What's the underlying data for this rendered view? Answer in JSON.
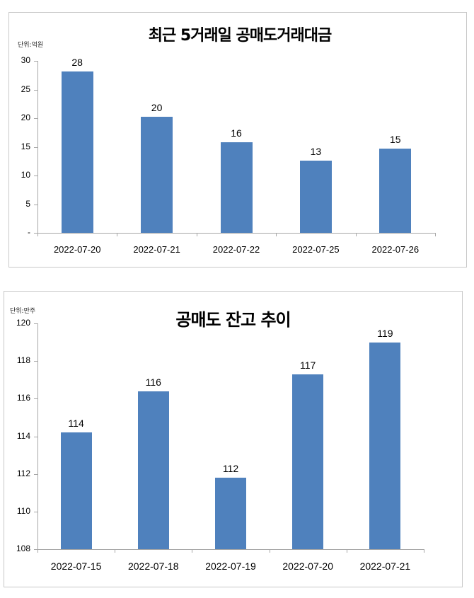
{
  "chart_data": [
    {
      "type": "bar",
      "title": "최근 5거래일 공매도거래대금",
      "unit_label": "단위:억원",
      "xlabel": "",
      "ylabel": "",
      "categories": [
        "2022-07-20",
        "2022-07-21",
        "2022-07-22",
        "2022-07-25",
        "2022-07-26"
      ],
      "values": [
        28,
        20,
        16,
        13,
        15
      ],
      "plotted_values": [
        28.1,
        20.2,
        15.8,
        12.6,
        14.7
      ],
      "data_labels": [
        "28",
        "20",
        "16",
        "13",
        "15"
      ],
      "ylim": [
        0,
        30
      ],
      "yticks": [
        0,
        5,
        10,
        15,
        20,
        25,
        30
      ],
      "ytick_labels": [
        "-",
        "5",
        "10",
        "15",
        "20",
        "25",
        "30"
      ],
      "grid": false,
      "legend": "none",
      "bar_color": "#4f81bd"
    },
    {
      "type": "bar",
      "title": "공매도 잔고 추이",
      "unit_label": "단위:만주",
      "xlabel": "",
      "ylabel": "",
      "categories": [
        "2022-07-15",
        "2022-07-18",
        "2022-07-19",
        "2022-07-20",
        "2022-07-21"
      ],
      "values": [
        114,
        116,
        112,
        117,
        119
      ],
      "plotted_values": [
        114.2,
        116.4,
        111.8,
        117.3,
        119.0
      ],
      "data_labels": [
        "114",
        "116",
        "112",
        "117",
        "119"
      ],
      "ylim": [
        108,
        120
      ],
      "yticks": [
        108,
        110,
        112,
        114,
        116,
        118,
        120
      ],
      "ytick_labels": [
        "108",
        "110",
        "112",
        "114",
        "116",
        "118",
        "120"
      ],
      "grid": false,
      "legend": "none",
      "bar_color": "#4f81bd"
    }
  ]
}
